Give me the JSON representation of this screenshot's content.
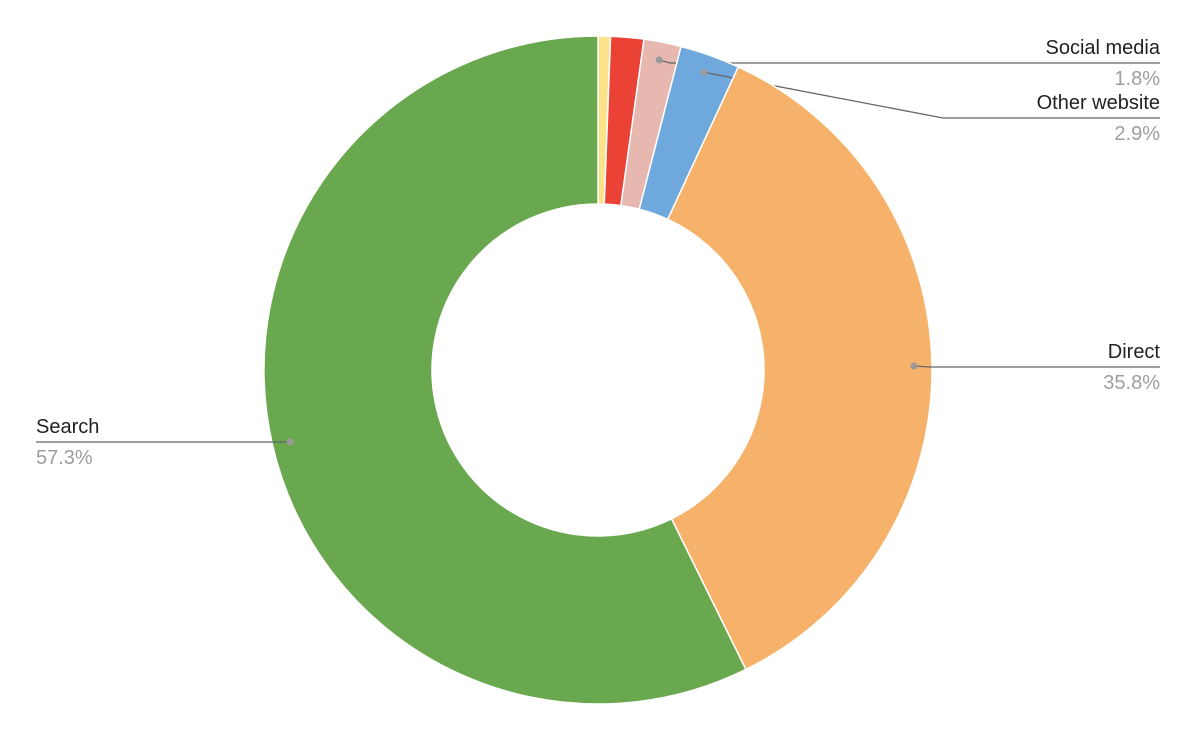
{
  "chart_data": {
    "type": "donut",
    "categories": [
      null,
      null,
      "Social media",
      "Other website",
      "Direct",
      "Search"
    ],
    "values": [
      0.6,
      1.6,
      1.8,
      2.9,
      35.8,
      57.3
    ],
    "value_labels": [
      null,
      null,
      "1.8%",
      "2.9%",
      "35.8%",
      "57.3%"
    ],
    "colors": [
      "#fce38a",
      "#ea4335",
      "#e6b8af",
      "#6fa8dc",
      "#f6b26b",
      "#6aa84f"
    ]
  }
}
